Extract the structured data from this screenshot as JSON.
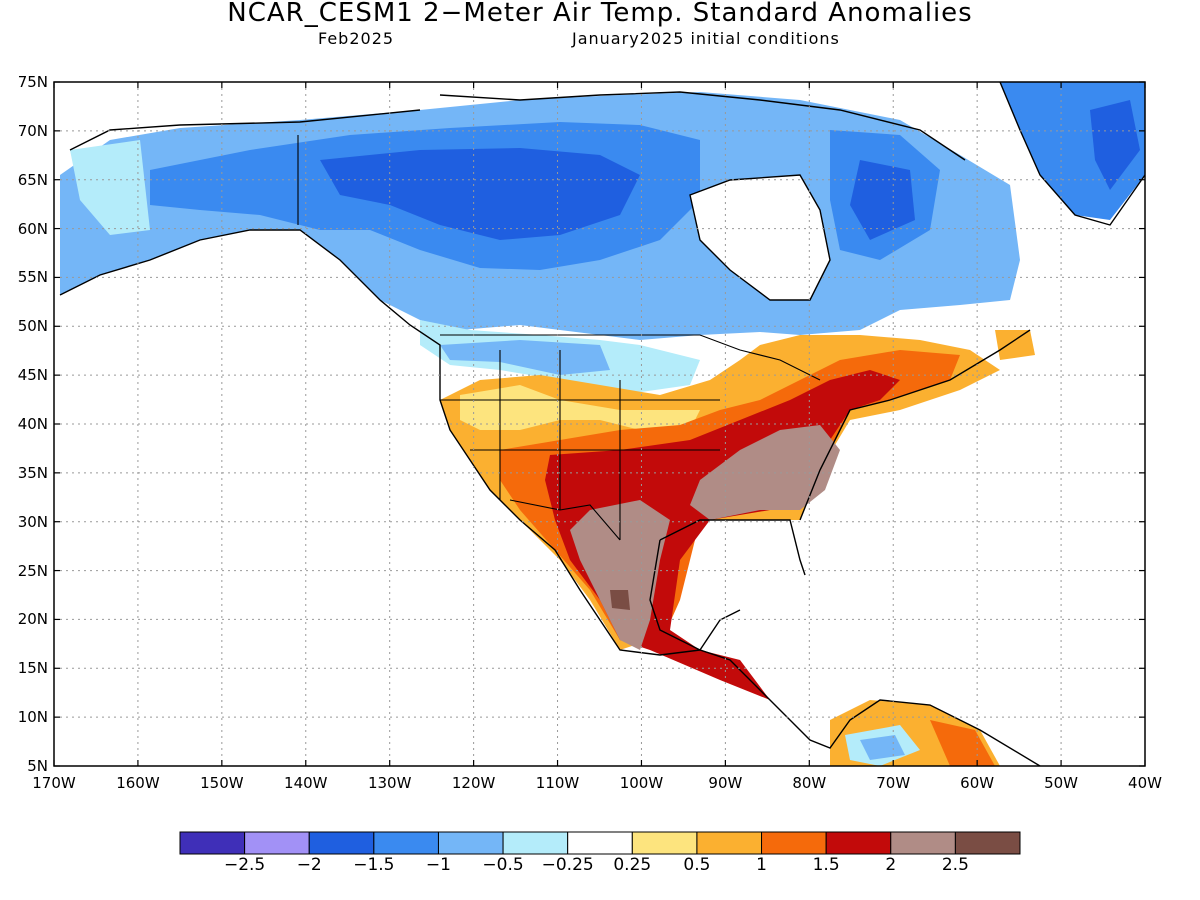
{
  "title": "NCAR_CESM1 2−Meter Air Temp. Standard Anomalies",
  "subtitle_left": "Feb2025",
  "subtitle_right": "January2025 initial conditions",
  "lat_labels": [
    "75N",
    "70N",
    "65N",
    "60N",
    "55N",
    "50N",
    "45N",
    "40N",
    "35N",
    "30N",
    "25N",
    "20N",
    "15N",
    "10N",
    "5N"
  ],
  "lon_labels": [
    "170W",
    "160W",
    "150W",
    "140W",
    "130W",
    "120W",
    "110W",
    "100W",
    "90W",
    "80W",
    "70W",
    "60W",
    "50W",
    "40W"
  ],
  "colorbar": {
    "colors": [
      "#3f2fb8",
      "#a291f6",
      "#1f5fe0",
      "#3a8af0",
      "#74b6f7",
      "#b4ecfa",
      "#ffffff",
      "#fde47e",
      "#fbb030",
      "#f56a0b",
      "#c20a0a",
      "#b08c86",
      "#7a4d44"
    ],
    "labels": [
      "−2.5",
      "−2",
      "−1.5",
      "−1",
      "−0.5",
      "−0.25",
      "0.25",
      "0.5",
      "1",
      "1.5",
      "2",
      "2.5"
    ]
  },
  "map_extent": {
    "lon": [
      -170,
      -40
    ],
    "lat": [
      5,
      75
    ]
  }
}
